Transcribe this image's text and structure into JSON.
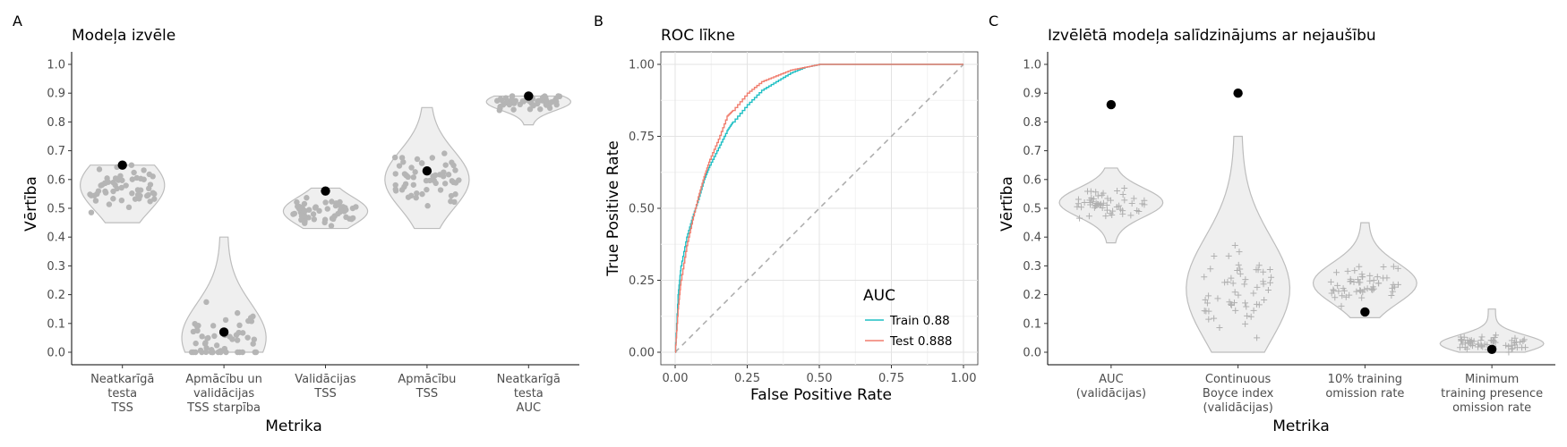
{
  "chart_data": [
    {
      "tag": "A",
      "type": "violin-jitter",
      "title": "Modeļa izvēle",
      "xlabel": "Metrika",
      "ylabel": "Vērtība",
      "ylim": [
        0,
        1.0
      ],
      "yticks": [
        "0.0",
        "0.1",
        "0.2",
        "0.3",
        "0.4",
        "0.5",
        "0.6",
        "0.7",
        "0.8",
        "0.9",
        "1.0"
      ],
      "categories": [
        [
          "Neatkarīgā",
          "testa",
          "TSS"
        ],
        [
          "Apmācību un",
          "validācijas",
          "TSS starpība"
        ],
        [
          "Validācijas",
          "TSS"
        ],
        [
          "Apmācību",
          "TSS"
        ],
        [
          "Neatkarīgā",
          "testa",
          "AUC"
        ]
      ],
      "groups": [
        {
          "selected": 0.65,
          "min": 0.45,
          "max": 0.65,
          "center": 0.58,
          "spread": 0.09
        },
        {
          "selected": 0.07,
          "min": 0.0,
          "max": 0.4,
          "center": 0.05,
          "spread": 0.12
        },
        {
          "selected": 0.56,
          "min": 0.43,
          "max": 0.57,
          "center": 0.49,
          "spread": 0.05
        },
        {
          "selected": 0.63,
          "min": 0.43,
          "max": 0.85,
          "center": 0.6,
          "spread": 0.1
        },
        {
          "selected": 0.89,
          "min": 0.79,
          "max": 0.89,
          "center": 0.87,
          "spread": 0.03
        }
      ],
      "grid": false
    },
    {
      "tag": "B",
      "type": "line",
      "title": "ROC līkne",
      "xlabel": "False Positive Rate",
      "ylabel": "True Positive Rate",
      "xlim": [
        0,
        1
      ],
      "ylim": [
        0,
        1
      ],
      "xticks": [
        "0.00",
        "0.25",
        "0.50",
        "0.75",
        "1.00"
      ],
      "yticks": [
        "0.00",
        "0.25",
        "0.50",
        "0.75",
        "1.00"
      ],
      "legend_title": "AUC",
      "legend_position": "bottom-right",
      "series": [
        {
          "name": "Train 0.88",
          "color": "#1fbfc4",
          "x": [
            0,
            0.01,
            0.02,
            0.04,
            0.06,
            0.08,
            0.1,
            0.12,
            0.15,
            0.18,
            0.2,
            0.25,
            0.3,
            0.35,
            0.4,
            0.45,
            0.5,
            0.6,
            0.7,
            1.0
          ],
          "y": [
            0,
            0.2,
            0.3,
            0.4,
            0.47,
            0.53,
            0.6,
            0.65,
            0.71,
            0.77,
            0.8,
            0.86,
            0.91,
            0.94,
            0.97,
            0.99,
            1.0,
            1.0,
            1.0,
            1.0
          ]
        },
        {
          "name": "Test 0.888",
          "color": "#f07d6e",
          "x": [
            0,
            0.01,
            0.02,
            0.04,
            0.06,
            0.08,
            0.1,
            0.12,
            0.15,
            0.18,
            0.2,
            0.25,
            0.3,
            0.35,
            0.4,
            0.45,
            0.5,
            0.6,
            0.7,
            1.0
          ],
          "y": [
            0,
            0.15,
            0.25,
            0.37,
            0.46,
            0.54,
            0.61,
            0.67,
            0.74,
            0.82,
            0.84,
            0.9,
            0.94,
            0.96,
            0.98,
            0.99,
            1.0,
            1.0,
            1.0,
            1.0
          ]
        }
      ],
      "reference_line": {
        "x": [
          0,
          1
        ],
        "y": [
          0,
          1
        ],
        "style": "dashed"
      },
      "grid": true
    },
    {
      "tag": "C",
      "type": "violin-jitter",
      "title": "Izvēlētā modeļa salīdzinājums ar nejaušību",
      "xlabel": "Metrika",
      "ylabel": "Vērtība",
      "ylim": [
        0,
        1.0
      ],
      "yticks": [
        "0.0",
        "0.1",
        "0.2",
        "0.3",
        "0.4",
        "0.5",
        "0.6",
        "0.7",
        "0.8",
        "0.9",
        "1.0"
      ],
      "categories": [
        [
          "AUC",
          "(validācijas)"
        ],
        [
          "Continuous",
          "Boyce index",
          "(validācijas)"
        ],
        [
          "10% training",
          "omission rate"
        ],
        [
          "Minimum",
          "training presence",
          "omission rate"
        ]
      ],
      "groups": [
        {
          "selected": 0.86,
          "min": 0.38,
          "max": 0.64,
          "center": 0.52,
          "spread": 0.05
        },
        {
          "selected": 0.9,
          "min": 0.0,
          "max": 0.75,
          "center": 0.22,
          "spread": 0.18
        },
        {
          "selected": 0.14,
          "min": 0.12,
          "max": 0.45,
          "center": 0.24,
          "spread": 0.07
        },
        {
          "selected": 0.01,
          "min": 0.0,
          "max": 0.15,
          "center": 0.03,
          "spread": 0.03
        }
      ],
      "grid": false
    }
  ]
}
